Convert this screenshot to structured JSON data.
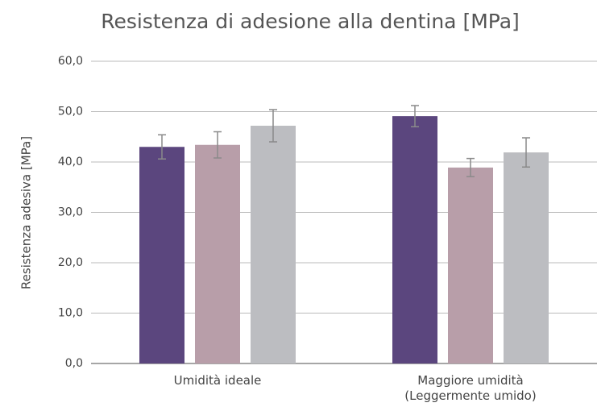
{
  "chart_data": {
    "type": "bar",
    "title": "Resistenza di adesione alla dentina [MPa]",
    "y_label": "Resistenza adesiva [MPa]",
    "categories": [
      "Umidità ideale",
      "Maggiore umidità\n(Leggermente umido)"
    ],
    "series": [
      {
        "color": "#5b467e",
        "values": [
          43.0,
          49.1
        ],
        "errors": [
          2.4,
          2.1
        ]
      },
      {
        "color": "#b89ea9",
        "values": [
          43.4,
          38.9
        ],
        "errors": [
          2.6,
          1.8
        ]
      },
      {
        "color": "#bcbdc1",
        "values": [
          47.2,
          41.9
        ],
        "errors": [
          3.2,
          2.9
        ]
      }
    ],
    "ylim": [
      0,
      60
    ],
    "yticks": [
      {
        "value": 0,
        "label": "0,0"
      },
      {
        "value": 10,
        "label": "10,0"
      },
      {
        "value": 20,
        "label": "20,0"
      },
      {
        "value": 30,
        "label": "30,0"
      },
      {
        "value": 40,
        "label": "40,0"
      },
      {
        "value": 50,
        "label": "50,0"
      },
      {
        "value": 60,
        "label": "60,0"
      }
    ],
    "grid": true,
    "error_color": "#8a8a8a"
  }
}
